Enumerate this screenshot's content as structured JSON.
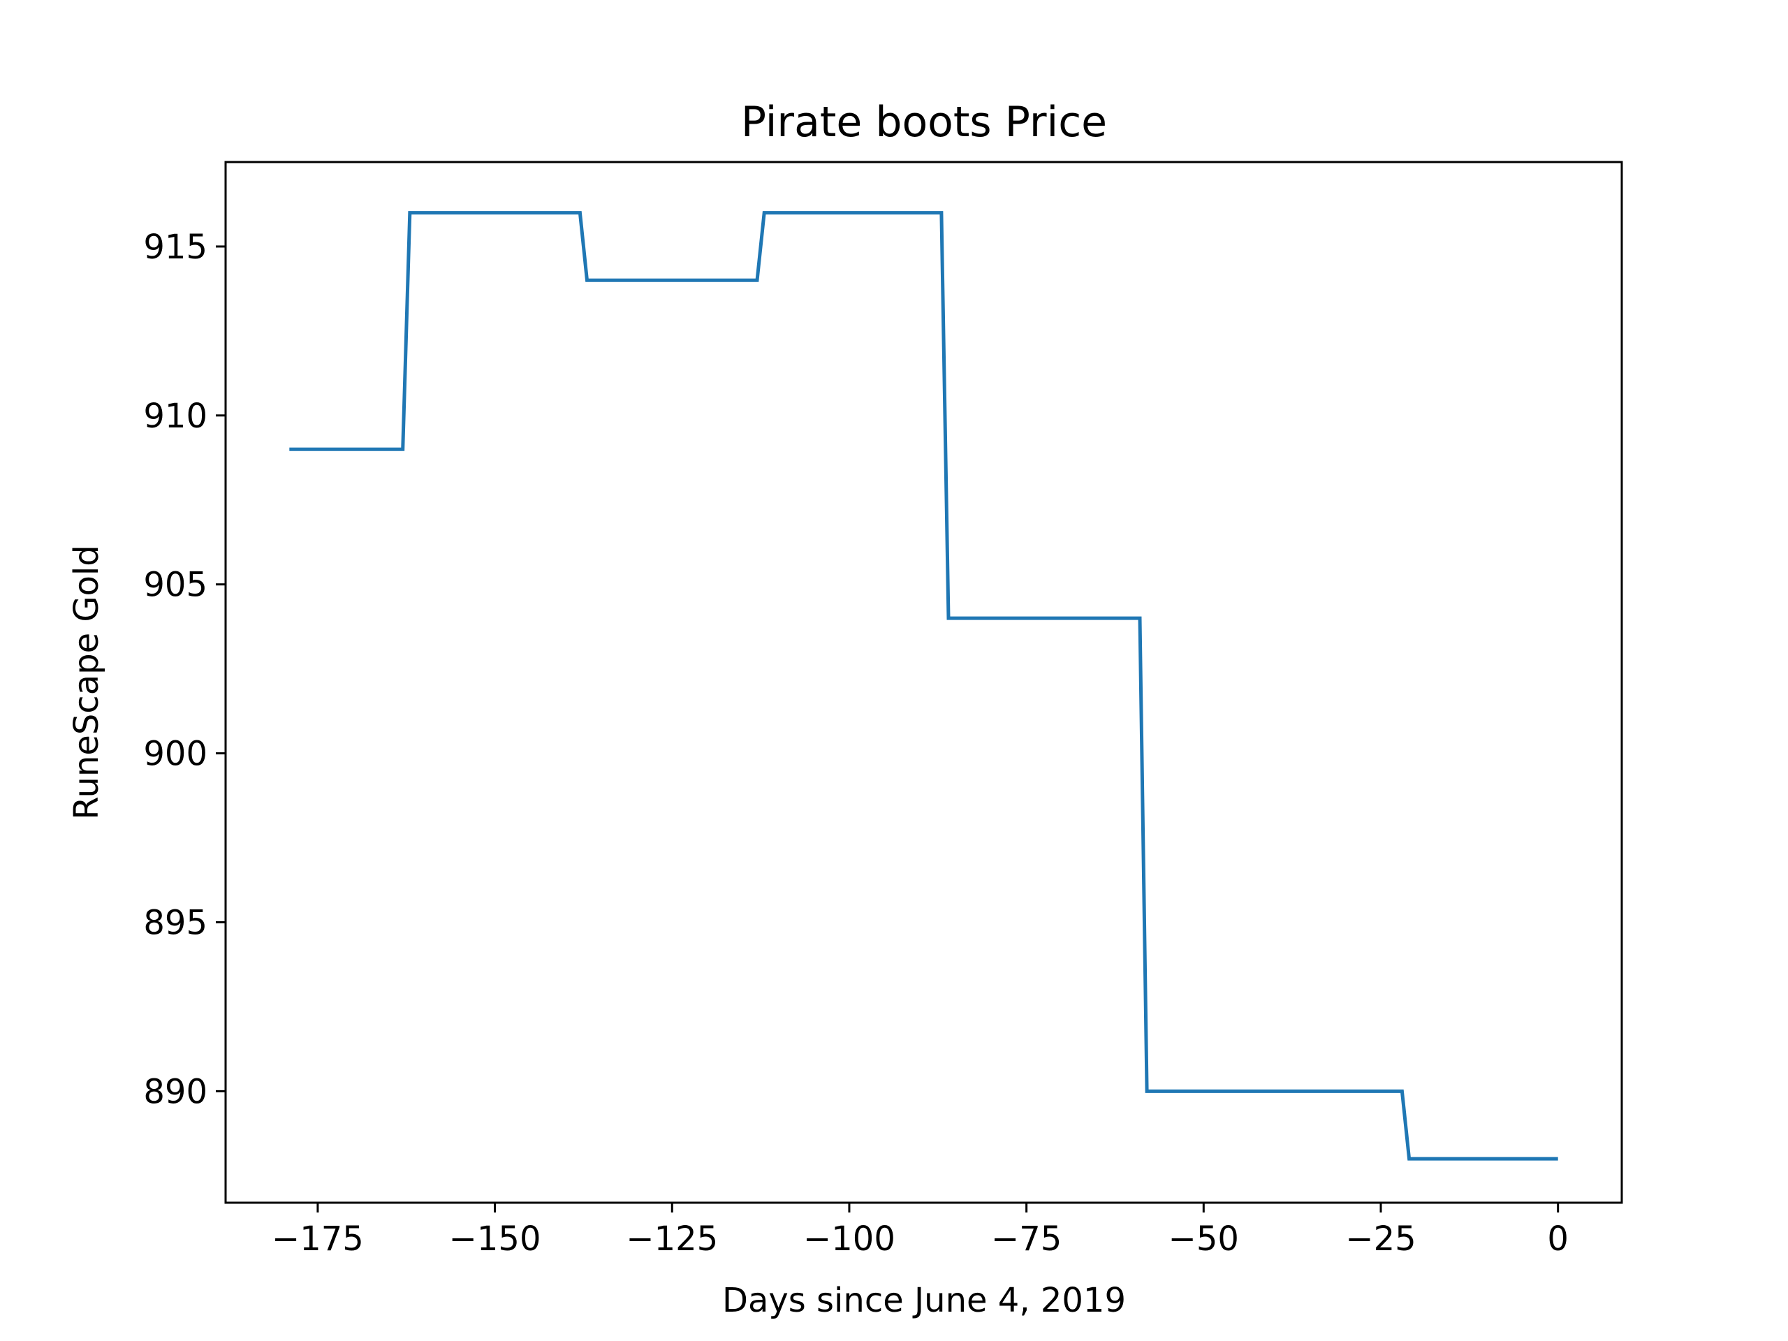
{
  "chart_data": {
    "type": "line",
    "title": "Pirate boots Price",
    "xlabel": "Days since June 4, 2019",
    "ylabel": "RuneScape Gold",
    "xlim": [
      -188,
      9
    ],
    "ylim": [
      886.7,
      917.5
    ],
    "grid": false,
    "x_ticks": [
      -175,
      -150,
      -125,
      -100,
      -75,
      -50,
      -25,
      0
    ],
    "x_tick_labels": [
      "−175",
      "−150",
      "−125",
      "−100",
      "−75",
      "−50",
      "−25",
      "0"
    ],
    "y_ticks": [
      890,
      895,
      900,
      905,
      910,
      915
    ],
    "y_tick_labels": [
      "890",
      "895",
      "900",
      "905",
      "910",
      "915"
    ],
    "series": [
      {
        "color": "#1f77b4",
        "x": [
          -179,
          -163,
          -162,
          -138,
          -137,
          -113,
          -112,
          -87,
          -86,
          -59,
          -58,
          -22,
          -21,
          0
        ],
        "y": [
          909,
          909,
          916,
          916,
          914,
          914,
          916,
          916,
          904,
          904,
          890,
          890,
          888,
          888
        ]
      }
    ]
  }
}
